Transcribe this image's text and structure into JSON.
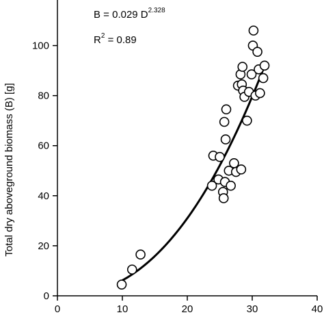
{
  "chart_data": {
    "type": "scatter",
    "ylabel": "Total dry aboveground biomass (B) [g]",
    "xlim": [
      0,
      40
    ],
    "ylim": [
      0,
      110
    ],
    "x_ticks": [
      0,
      10,
      20,
      30,
      40
    ],
    "y_ticks": [
      0,
      20,
      40,
      60,
      80,
      100
    ],
    "grid": false,
    "annotations": {
      "equation_lhs": "B = 0.029 D",
      "equation_exponent": "2.328",
      "r2_lhs": "R",
      "r2_exponent": "2",
      "r2_rhs": " = 0.89"
    },
    "fit": {
      "a": 0.029,
      "b": 2.328,
      "x_from": 10,
      "x_to": 32
    },
    "points": [
      {
        "x": 9.9,
        "y": 4.5
      },
      {
        "x": 11.5,
        "y": 10.5
      },
      {
        "x": 12.8,
        "y": 16.5
      },
      {
        "x": 23.8,
        "y": 44.0
      },
      {
        "x": 24.0,
        "y": 56.0
      },
      {
        "x": 24.8,
        "y": 46.5
      },
      {
        "x": 25.0,
        "y": 55.5
      },
      {
        "x": 25.5,
        "y": 41.5
      },
      {
        "x": 25.6,
        "y": 39.0
      },
      {
        "x": 25.8,
        "y": 45.5
      },
      {
        "x": 25.7,
        "y": 69.5
      },
      {
        "x": 25.9,
        "y": 62.5
      },
      {
        "x": 26.0,
        "y": 74.5
      },
      {
        "x": 26.4,
        "y": 50.0
      },
      {
        "x": 26.7,
        "y": 44.0
      },
      {
        "x": 27.2,
        "y": 53.0
      },
      {
        "x": 27.5,
        "y": 49.5
      },
      {
        "x": 27.8,
        "y": 84.0
      },
      {
        "x": 28.3,
        "y": 50.5
      },
      {
        "x": 28.2,
        "y": 88.5
      },
      {
        "x": 28.4,
        "y": 84.5
      },
      {
        "x": 28.5,
        "y": 91.5
      },
      {
        "x": 28.6,
        "y": 82.0
      },
      {
        "x": 28.8,
        "y": 79.5
      },
      {
        "x": 29.2,
        "y": 70.0
      },
      {
        "x": 29.5,
        "y": 81.5
      },
      {
        "x": 29.9,
        "y": 88.5
      },
      {
        "x": 30.1,
        "y": 100.0
      },
      {
        "x": 30.2,
        "y": 106.0
      },
      {
        "x": 30.5,
        "y": 80.0
      },
      {
        "x": 30.8,
        "y": 97.5
      },
      {
        "x": 31.0,
        "y": 90.5
      },
      {
        "x": 31.2,
        "y": 81.0
      },
      {
        "x": 31.7,
        "y": 87.0
      },
      {
        "x": 31.9,
        "y": 92.0
      }
    ]
  }
}
